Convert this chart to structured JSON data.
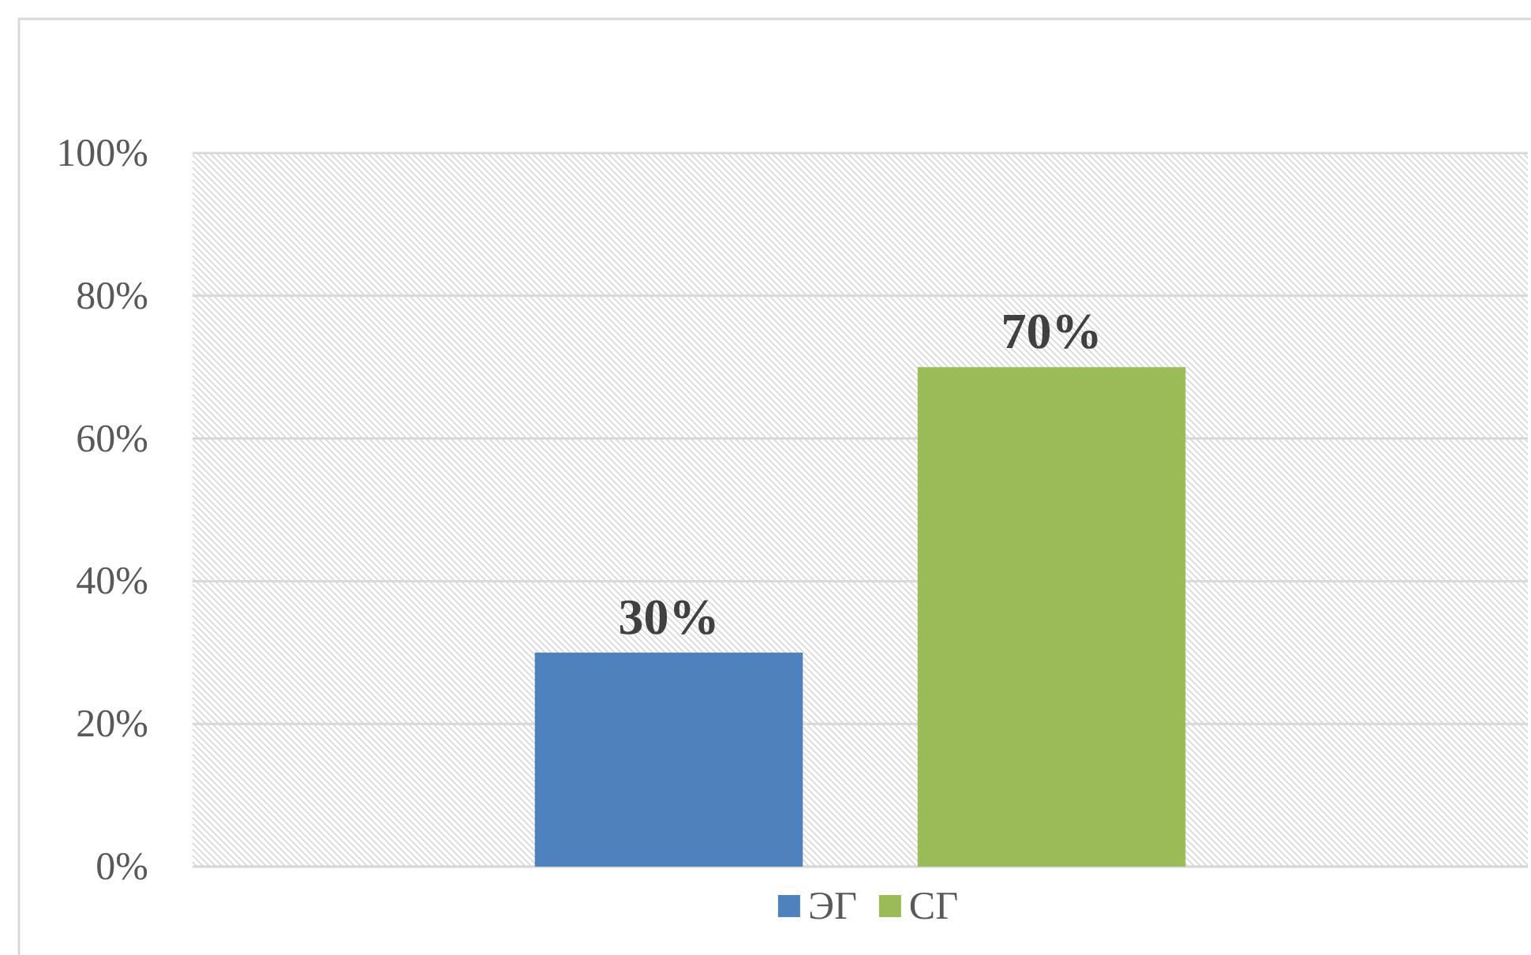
{
  "chart_data": {
    "type": "bar",
    "categories": [
      null
    ],
    "series": [
      {
        "name": "ЭГ",
        "color": "#4f81bd",
        "values": [
          30
        ],
        "value_labels": [
          "30%"
        ]
      },
      {
        "name": "СГ",
        "color": "#9bbb59",
        "values": [
          70
        ],
        "value_labels": [
          "70%"
        ]
      }
    ],
    "ylim": [
      0,
      100
    ],
    "yticks": [
      {
        "value": 0,
        "label": "0%"
      },
      {
        "value": 20,
        "label": "20%"
      },
      {
        "value": 40,
        "label": "40%"
      },
      {
        "value": 60,
        "label": "60%"
      },
      {
        "value": 80,
        "label": "80%"
      },
      {
        "value": 100,
        "label": "100%"
      }
    ],
    "grid": "y",
    "legend": "bottom"
  }
}
